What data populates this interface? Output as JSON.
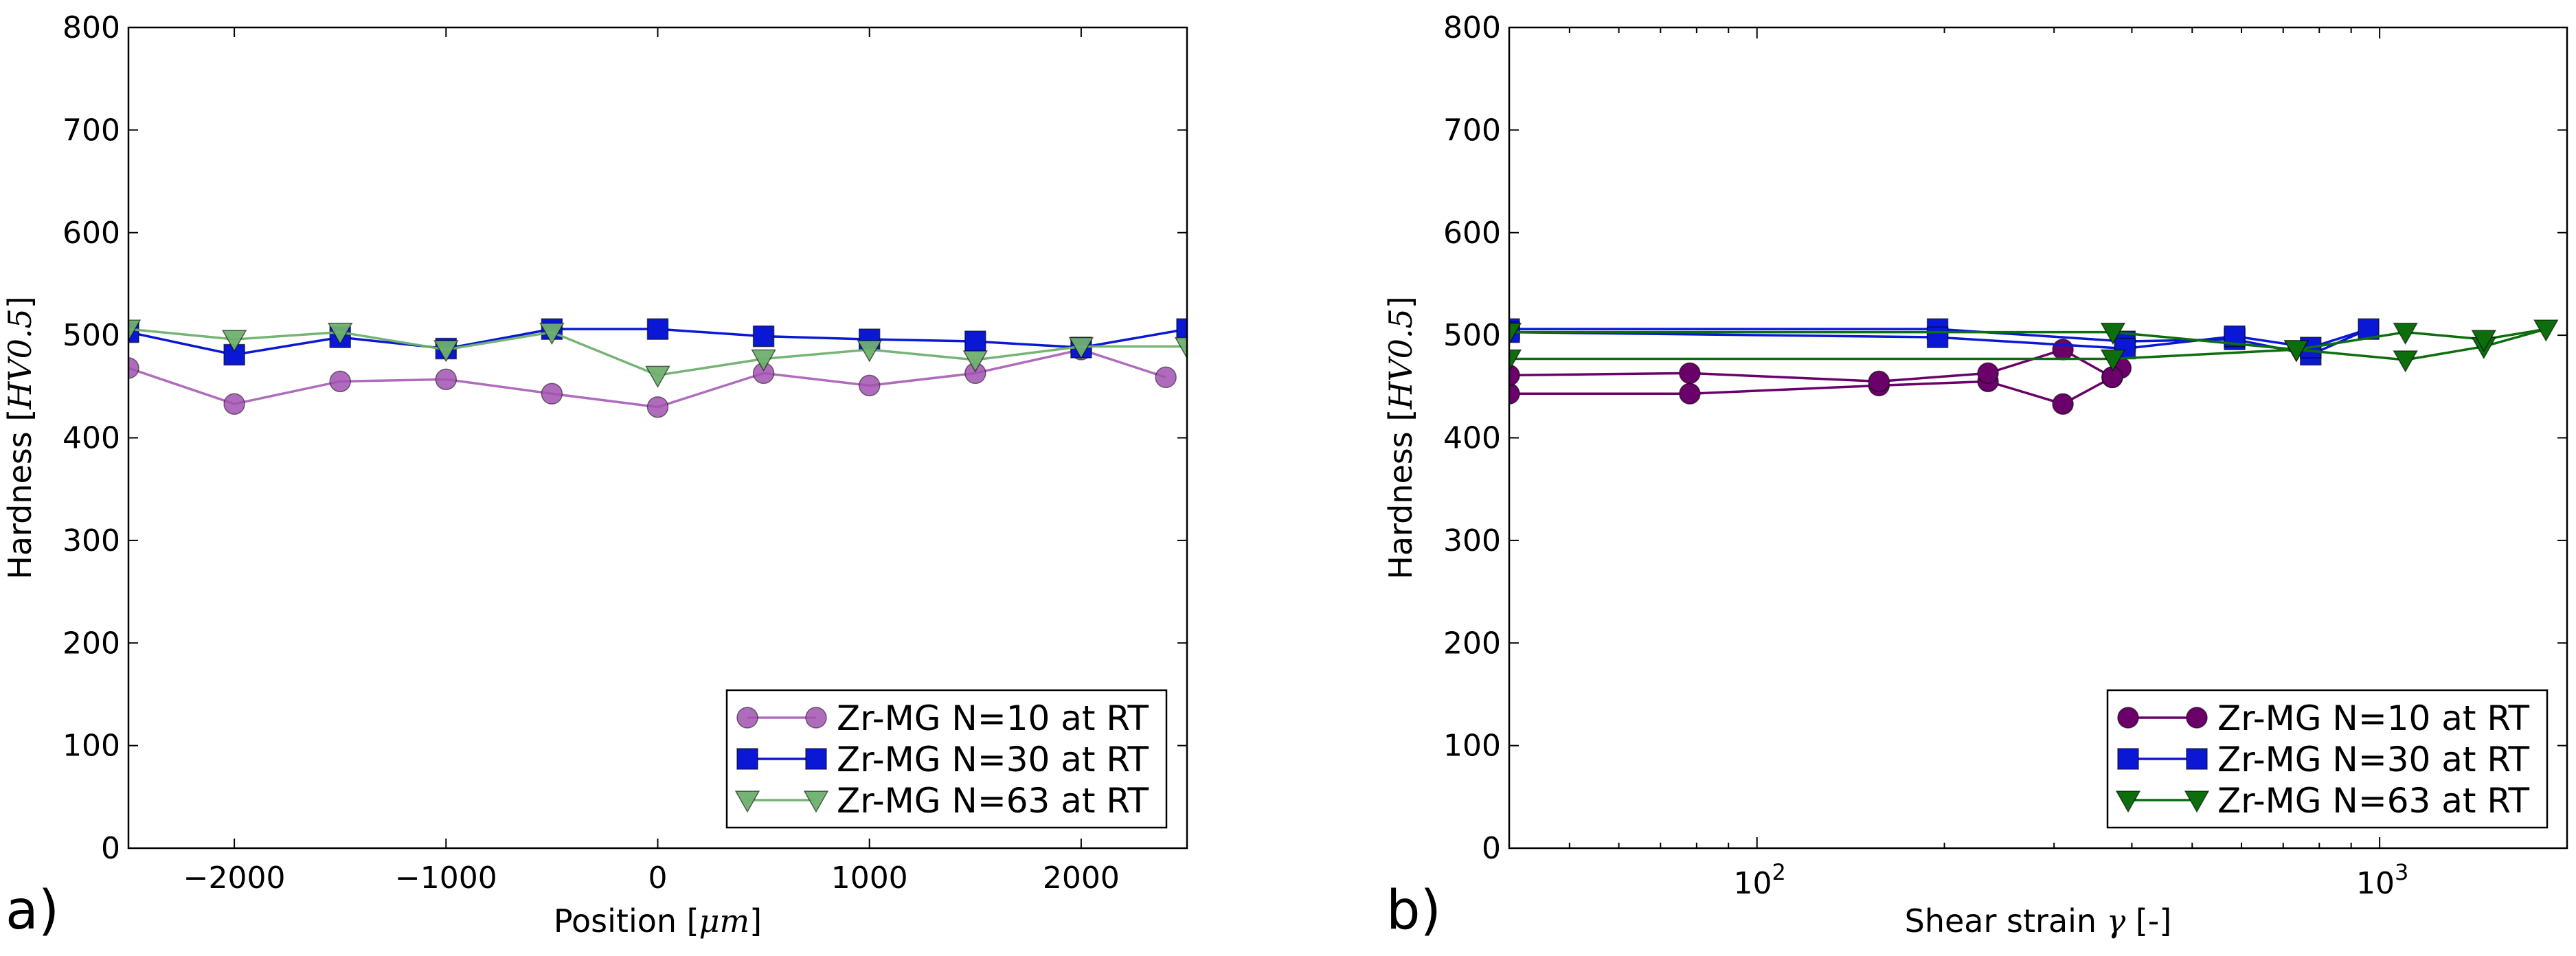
{
  "chart_data": [
    {
      "type": "line",
      "panel_label": "a)",
      "xlabel": "Position",
      "xlabel_unit": "μm",
      "ylabel": "Hardness",
      "ylabel_unit": "HV0.5",
      "xscale": "linear",
      "xlim": [
        -2500,
        2500
      ],
      "ylim": [
        0,
        800
      ],
      "xticks": [
        -2000,
        -1000,
        0,
        1000,
        2000
      ],
      "xtick_labels": [
        "−2000",
        "−1000",
        "0",
        "1000",
        "2000"
      ],
      "yticks": [
        0,
        100,
        200,
        300,
        400,
        500,
        600,
        700,
        800
      ],
      "ytick_labels": [
        "0",
        "100",
        "200",
        "300",
        "400",
        "500",
        "600",
        "700",
        "800"
      ],
      "legend_position": "lower-right",
      "series": [
        {
          "name": "Zr-MG N=10 at RT",
          "color": "#a252b0",
          "marker": "circle",
          "alpha": 0.85,
          "x": [
            -2500,
            -2000,
            -1500,
            -1000,
            -500,
            0,
            500,
            1000,
            1500,
            2000,
            2400
          ],
          "y": [
            468,
            433,
            455,
            457,
            443,
            430,
            463,
            451,
            463,
            486,
            459
          ]
        },
        {
          "name": "Zr-MG N=30 at RT",
          "color": "#0a18d6",
          "marker": "square",
          "alpha": 1,
          "x": [
            -2500,
            -2000,
            -1500,
            -1000,
            -500,
            0,
            500,
            1000,
            1500,
            2000,
            2500
          ],
          "y": [
            503,
            481,
            498,
            487,
            506,
            506,
            499,
            496,
            494,
            488,
            506
          ]
        },
        {
          "name": "Zr-MG N=63 at RT",
          "color": "#6fb06f",
          "marker": "triangle-down",
          "alpha": 0.95,
          "x": [
            -2500,
            -2000,
            -1500,
            -1000,
            -500,
            0,
            500,
            1000,
            1500,
            2000,
            2500
          ],
          "y": [
            506,
            496,
            503,
            486,
            503,
            461,
            477,
            486,
            476,
            489,
            489
          ]
        }
      ]
    },
    {
      "type": "line",
      "panel_label": "b)",
      "xlabel": "Shear strain",
      "xlabel_symbol": "γ",
      "xlabel_unit": "[-]",
      "ylabel": "Hardness",
      "ylabel_unit": "HV0.5",
      "xscale": "log",
      "xlim": [
        40,
        2000
      ],
      "ylim": [
        0,
        800
      ],
      "xticks": [
        100,
        1000
      ],
      "xtick_labels": [
        "10",
        "10"
      ],
      "xtick_exponents": [
        "2",
        "3"
      ],
      "yticks": [
        0,
        100,
        200,
        300,
        400,
        500,
        600,
        700,
        800
      ],
      "ytick_labels": [
        "0",
        "100",
        "200",
        "300",
        "400",
        "500",
        "600",
        "700",
        "800"
      ],
      "legend_position": "lower-right",
      "series": [
        {
          "name": "Zr-MG N=10 at RT",
          "color": "#6b006b",
          "marker": "circle",
          "alpha": 1,
          "x": [
            40,
            78,
            157,
            235,
            310,
            372,
            384,
            372,
            310,
            235,
            157,
            78,
            40
          ],
          "y": [
            443,
            443,
            451,
            455,
            433,
            459,
            468,
            459,
            486,
            463,
            455,
            463,
            461
          ]
        },
        {
          "name": "Zr-MG N=30 at RT",
          "color": "#0a18d6",
          "marker": "square",
          "alpha": 1,
          "x": [
            40,
            195,
            390,
            585,
            775,
            960,
            775,
            585,
            390,
            195,
            40
          ],
          "y": [
            506,
            506,
            494,
            496,
            481,
            506,
            488,
            499,
            487,
            498,
            503
          ]
        },
        {
          "name": "Zr-MG N=63 at RT",
          "color": "#0d6e0d",
          "marker": "triangle-down",
          "alpha": 1,
          "x": [
            40,
            373,
            735,
            1100,
            1470,
            1850,
            1470,
            1100,
            735,
            373,
            40
          ],
          "y": [
            477,
            477,
            486,
            476,
            489,
            506,
            496,
            503,
            486,
            503,
            503
          ]
        }
      ]
    }
  ]
}
